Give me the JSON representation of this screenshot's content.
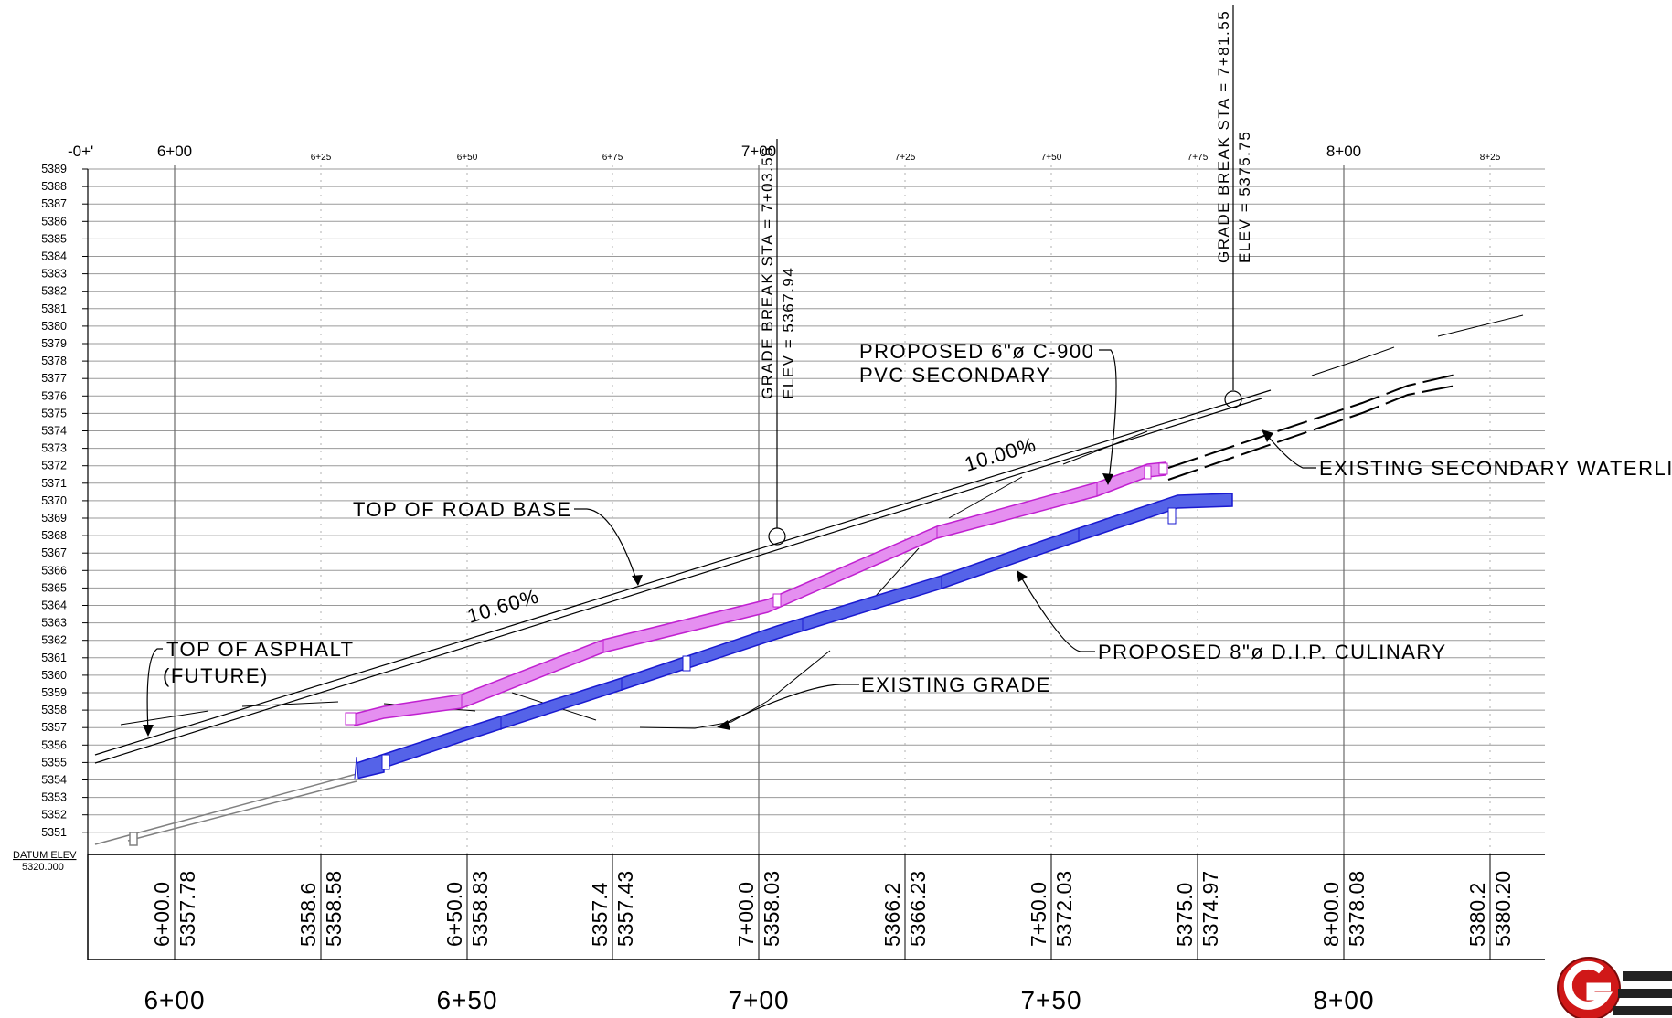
{
  "profile": {
    "elevation_ticks": [
      "5389",
      "5388",
      "5387",
      "5386",
      "5385",
      "5384",
      "5383",
      "5382",
      "5381",
      "5380",
      "5379",
      "5378",
      "5377",
      "5376",
      "5375",
      "5374",
      "5373",
      "5372",
      "5371",
      "5370",
      "5369",
      "5368",
      "5367",
      "5366",
      "5365",
      "5364",
      "5363",
      "5362",
      "5361",
      "5360",
      "5359",
      "5358",
      "5357",
      "5356",
      "5355",
      "5354",
      "5353",
      "5352",
      "5351"
    ],
    "top_stations": [
      {
        "label": "-0+'",
        "major": true
      },
      {
        "label": "6+00",
        "major": true
      },
      {
        "label": "6+25",
        "major": false
      },
      {
        "label": "6+50",
        "major": false
      },
      {
        "label": "6+75",
        "major": false
      },
      {
        "label": "7+00",
        "major": true
      },
      {
        "label": "7+25",
        "major": false
      },
      {
        "label": "7+50",
        "major": false
      },
      {
        "label": "7+75",
        "major": false
      },
      {
        "label": "8+00",
        "major": true
      },
      {
        "label": "8+25",
        "major": false
      }
    ],
    "datum": {
      "label": "DATUM ELEV",
      "value": "5320.000"
    },
    "bottom_values": [
      {
        "a": "6+00.0",
        "b": "5357.78"
      },
      {
        "a": "5358.6",
        "b": "5358.58"
      },
      {
        "a": "6+50.0",
        "b": "5358.83"
      },
      {
        "a": "5357.4",
        "b": "5357.43"
      },
      {
        "a": "7+00.0",
        "b": "5358.03"
      },
      {
        "a": "5366.2",
        "b": "5366.23"
      },
      {
        "a": "7+50.0",
        "b": "5372.03"
      },
      {
        "a": "5375.0",
        "b": "5374.97"
      },
      {
        "a": "8+00.0",
        "b": "5378.08"
      },
      {
        "a": "5380.2",
        "b": "5380.20"
      }
    ],
    "bottom_stations": [
      "6+00",
      "6+50",
      "7+00",
      "7+50",
      "8+00"
    ],
    "annotations": {
      "top_of_road_base": "TOP OF ROAD BASE",
      "top_of_asphalt_1": "TOP OF ASPHALT",
      "top_of_asphalt_2": "(FUTURE)",
      "proposed_pvc_1": "PROPOSED 6\"ø C-900",
      "proposed_pvc_2": "PVC SECONDARY",
      "existing_secondary": "EXISTING SECONDARY WATERLINE",
      "proposed_dip": "PROPOSED 8\"ø D.I.P. CULINARY",
      "existing_grade": "EXISTING GRADE",
      "slope_1": "10.60%",
      "slope_2": "10.00%",
      "grade_break_1_sta": "GRADE BREAK STA = 7+03.56",
      "grade_break_1_elev": "ELEV = 5367.94",
      "grade_break_2_sta": "GRADE BREAK STA = 7+81.55",
      "grade_break_2_elev": "ELEV = 5375.75"
    },
    "colors": {
      "pvc_fill": "#e58ff0",
      "pvc_stroke": "#c020d0",
      "dip_fill": "#5060e8",
      "dip_stroke": "#1a1ad0",
      "grid": "#9a9a9a",
      "grid_fine": "#b0b0b0"
    }
  },
  "logo": {
    "name": "company-logo-icon"
  }
}
